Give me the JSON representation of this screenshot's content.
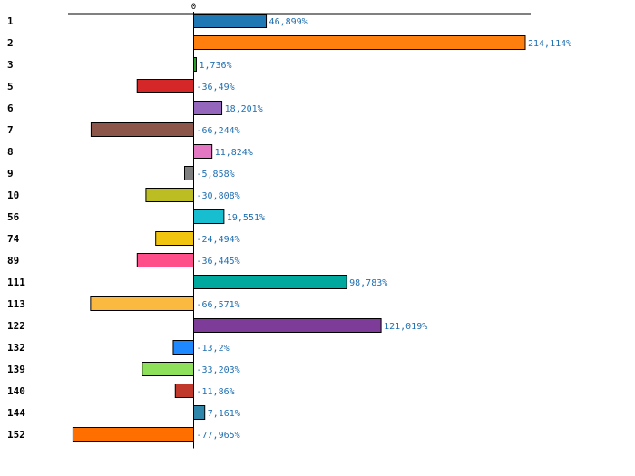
{
  "chart_data": {
    "type": "bar",
    "orientation": "horizontal",
    "title": "",
    "xlabel": "",
    "ylabel": "",
    "grid": false,
    "xlim": [
      -100,
      270
    ],
    "ticks": [
      {
        "value": 0,
        "label": "0"
      }
    ],
    "categories": [
      "1",
      "2",
      "3",
      "5",
      "6",
      "7",
      "8",
      "9",
      "10",
      "56",
      "74",
      "89",
      "111",
      "113",
      "122",
      "132",
      "139",
      "140",
      "144",
      "152"
    ],
    "values": [
      46.899,
      214.114,
      1.736,
      -36.49,
      18.201,
      -66.244,
      11.824,
      -5.858,
      -30.808,
      19.551,
      -24.494,
      -36.445,
      98.783,
      -66.571,
      121.019,
      -13.2,
      -33.203,
      -11.86,
      7.161,
      -77.965
    ],
    "value_labels": [
      "46,899%",
      "214,114%",
      "1,736%",
      "-36,49%",
      "18,201%",
      "-66,244%",
      "11,824%",
      "-5,858%",
      "-30,808%",
      "19,551%",
      "-24,494%",
      "-36,445%",
      "98,783%",
      "-66,571%",
      "121,019%",
      "-13,2%",
      "-33,203%",
      "-11,86%",
      "7,161%",
      "-77,965%"
    ],
    "colors": [
      "#1f77b4",
      "#ff7f0e",
      "#2ca02c",
      "#d62728",
      "#9467bd",
      "#8c564b",
      "#e377c2",
      "#7f7f7f",
      "#bcbd22",
      "#17becf",
      "#f1c40f",
      "#ff4f8b",
      "#00a99d",
      "#fcb941",
      "#7d3c98",
      "#1e88ff",
      "#8ee05a",
      "#c0392b",
      "#2e86ab",
      "#ff6f00"
    ],
    "label_color": "#1f6fb0"
  }
}
